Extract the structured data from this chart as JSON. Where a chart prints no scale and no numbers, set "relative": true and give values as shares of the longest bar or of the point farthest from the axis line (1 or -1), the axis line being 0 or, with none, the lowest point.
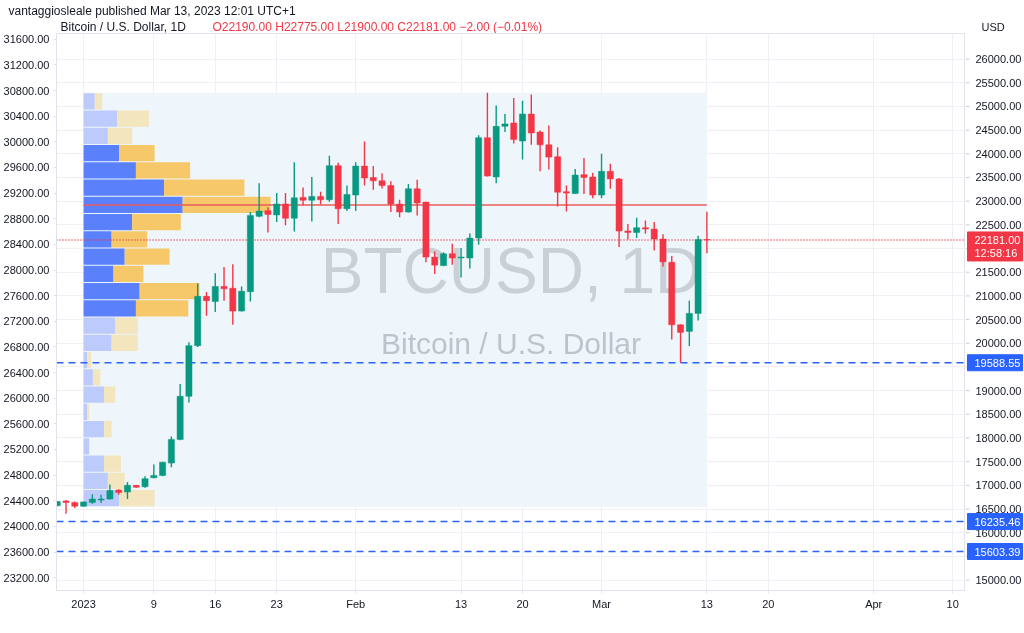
{
  "chart_data": [
    {
      "type": "candlestick",
      "title": "Bitcoin / U.S. Dollar, 1D",
      "subtitle": "O22190.00 H22775.00 L21900.00 C22181.00 −2.00 (−0.01%)",
      "ylabel": "USD",
      "annotations": [
        "vantaggiosleale published Mar 13, 2023 12:01 UTC+1",
        "BTCUSD, 1D",
        "Bitcoin / U.S. Dollar"
      ],
      "x": [
        "2022-12-29",
        "2022-12-30",
        "2022-12-31",
        "2023-01-01",
        "2023-01-02",
        "2023-01-03",
        "2023-01-04",
        "2023-01-05",
        "2023-01-06",
        "2023-01-07",
        "2023-01-08",
        "2023-01-09",
        "2023-01-10",
        "2023-01-11",
        "2023-01-12",
        "2023-01-13",
        "2023-01-14",
        "2023-01-15",
        "2023-01-16",
        "2023-01-17",
        "2023-01-18",
        "2023-01-19",
        "2023-01-20",
        "2023-01-21",
        "2023-01-22",
        "2023-01-23",
        "2023-01-24",
        "2023-01-25",
        "2023-01-26",
        "2023-01-27",
        "2023-01-28",
        "2023-01-29",
        "2023-01-30",
        "2023-01-31",
        "2023-02-01",
        "2023-02-02",
        "2023-02-03",
        "2023-02-04",
        "2023-02-05",
        "2023-02-06",
        "2023-02-07",
        "2023-02-08",
        "2023-02-09",
        "2023-02-10",
        "2023-02-11",
        "2023-02-12",
        "2023-02-13",
        "2023-02-14",
        "2023-02-15",
        "2023-02-16",
        "2023-02-17",
        "2023-02-18",
        "2023-02-19",
        "2023-02-20",
        "2023-02-21",
        "2023-02-22",
        "2023-02-23",
        "2023-02-24",
        "2023-02-25",
        "2023-02-26",
        "2023-02-27",
        "2023-02-28",
        "2023-03-01",
        "2023-03-02",
        "2023-03-03",
        "2023-03-04",
        "2023-03-05",
        "2023-03-06",
        "2023-03-07",
        "2023-03-08",
        "2023-03-09",
        "2023-03-10",
        "2023-03-11",
        "2023-03-12",
        "2023-03-13"
      ],
      "ohlc": [
        [
          16570,
          16670,
          16560,
          16660
        ],
        [
          16670,
          16690,
          16400,
          16640
        ],
        [
          16640,
          16660,
          16520,
          16560
        ],
        [
          16560,
          16660,
          16550,
          16650
        ],
        [
          16640,
          16810,
          16610,
          16710
        ],
        [
          16690,
          16800,
          16630,
          16710
        ],
        [
          16710,
          17020,
          16700,
          16890
        ],
        [
          16900,
          16920,
          16800,
          16850
        ],
        [
          16860,
          17070,
          16710,
          17000
        ],
        [
          17000,
          17010,
          16950,
          16960
        ],
        [
          16970,
          17190,
          16950,
          17140
        ],
        [
          17160,
          17440,
          17150,
          17210
        ],
        [
          17210,
          17500,
          17190,
          17490
        ],
        [
          17470,
          18030,
          17380,
          17970
        ],
        [
          17970,
          19140,
          17950,
          18880
        ],
        [
          18880,
          20020,
          18750,
          19950
        ],
        [
          19950,
          21260,
          19920,
          20990
        ],
        [
          20990,
          21080,
          20580,
          20900
        ],
        [
          20880,
          21480,
          20660,
          21200
        ],
        [
          21200,
          21610,
          20900,
          21150
        ],
        [
          21160,
          21670,
          20390,
          20680
        ],
        [
          20680,
          21200,
          20670,
          21100
        ],
        [
          21090,
          22770,
          20880,
          22700
        ],
        [
          22680,
          23380,
          22660,
          22790
        ],
        [
          22800,
          22870,
          22340,
          22720
        ],
        [
          22710,
          23170,
          22560,
          22940
        ],
        [
          22940,
          23170,
          22490,
          22640
        ],
        [
          22640,
          23820,
          22360,
          23070
        ],
        [
          23080,
          23290,
          22910,
          23020
        ],
        [
          23020,
          23510,
          22570,
          23100
        ],
        [
          23100,
          23200,
          22930,
          23030
        ],
        [
          23030,
          23960,
          22990,
          23750
        ],
        [
          23750,
          23810,
          22520,
          22840
        ],
        [
          22840,
          23330,
          22790,
          23140
        ],
        [
          23130,
          23820,
          22790,
          23740
        ],
        [
          23740,
          24260,
          23330,
          23490
        ],
        [
          23500,
          23740,
          23240,
          23430
        ],
        [
          23430,
          23590,
          23270,
          23330
        ],
        [
          23330,
          23420,
          22770,
          22940
        ],
        [
          22940,
          23030,
          22660,
          22770
        ],
        [
          22770,
          23360,
          22760,
          23260
        ],
        [
          23260,
          23450,
          22700,
          22960
        ],
        [
          22980,
          22990,
          21710,
          21820
        ],
        [
          21820,
          21940,
          21460,
          21650
        ],
        [
          21640,
          21920,
          21630,
          21890
        ],
        [
          21890,
          22100,
          21660,
          21800
        ],
        [
          21800,
          22010,
          21390,
          21820
        ],
        [
          21800,
          22320,
          21580,
          22220
        ],
        [
          22220,
          24390,
          22080,
          24340
        ],
        [
          24340,
          25290,
          23520,
          23530
        ],
        [
          23510,
          25020,
          23380,
          24580
        ],
        [
          24580,
          24840,
          24460,
          24630
        ],
        [
          24650,
          25180,
          24220,
          24300
        ],
        [
          24270,
          25120,
          23880,
          24840
        ],
        [
          24840,
          25250,
          24190,
          24440
        ],
        [
          24460,
          24490,
          23630,
          24190
        ],
        [
          24190,
          24600,
          23670,
          23930
        ],
        [
          23940,
          24140,
          22890,
          23190
        ],
        [
          23200,
          23330,
          22780,
          23170
        ],
        [
          23160,
          23680,
          23150,
          23550
        ],
        [
          23560,
          23910,
          23150,
          23500
        ],
        [
          23510,
          23600,
          23060,
          23130
        ],
        [
          23130,
          24000,
          23060,
          23630
        ],
        [
          23630,
          23790,
          23260,
          23470
        ],
        [
          23470,
          23490,
          22030,
          22370
        ],
        [
          22370,
          22520,
          22190,
          22340
        ],
        [
          22340,
          22650,
          22220,
          22440
        ],
        [
          22440,
          22590,
          22310,
          22410
        ],
        [
          22410,
          22560,
          21960,
          22200
        ],
        [
          22200,
          22300,
          21620,
          21720
        ],
        [
          21710,
          21840,
          20080,
          20390
        ],
        [
          20390,
          20400,
          19588.55,
          20230
        ],
        [
          20250,
          20900,
          19940,
          20630
        ],
        [
          20630,
          22270,
          20480,
          22190
        ],
        [
          22190,
          22775,
          21900,
          22181
        ]
      ],
      "xlim": [
        "2022-12-28T22:00",
        "2023-04-11T11:00"
      ],
      "xticks": [
        {
          "value": "2023-01-01",
          "label": "2023"
        },
        {
          "value": "2023-01-09",
          "label": "9"
        },
        {
          "value": "2023-01-16",
          "label": "16"
        },
        {
          "value": "2023-01-23",
          "label": "23"
        },
        {
          "value": "2023-02-01",
          "label": "Feb"
        },
        {
          "value": "2023-02-13",
          "label": "13"
        },
        {
          "value": "2023-02-20",
          "label": "20"
        },
        {
          "value": "2023-03-01",
          "label": "Mar"
        },
        {
          "value": "2023-03-13",
          "label": "13"
        },
        {
          "value": "2023-03-20",
          "label": "20"
        },
        {
          "value": "2023-04-01",
          "label": "Apr"
        },
        {
          "value": "2023-04-10",
          "label": "10"
        }
      ],
      "ylim": [
        14780,
        26540
      ],
      "yticks": [
        {
          "value": 15000,
          "label": "15000.00"
        },
        {
          "value": 15500,
          "label": null
        },
        {
          "value": 16000,
          "label": "16000.00"
        },
        {
          "value": 16500,
          "label": "16500.00"
        },
        {
          "value": 17000,
          "label": "17000.00"
        },
        {
          "value": 17500,
          "label": "17500.00"
        },
        {
          "value": 18000,
          "label": "18000.00"
        },
        {
          "value": 18500,
          "label": "18500.00"
        },
        {
          "value": 19000,
          "label": "19000.00"
        },
        {
          "value": 19500,
          "label": null
        },
        {
          "value": 20000,
          "label": "20000.00"
        },
        {
          "value": 20500,
          "label": "20500.00"
        },
        {
          "value": 21000,
          "label": "21000.00"
        },
        {
          "value": 21500,
          "label": "21500.00"
        },
        {
          "value": 22000,
          "label": null
        },
        {
          "value": 22500,
          "label": "22500.00"
        },
        {
          "value": 23000,
          "label": "23000.00"
        },
        {
          "value": 23500,
          "label": "23500.00"
        },
        {
          "value": 24000,
          "label": "24000.00"
        },
        {
          "value": 24500,
          "label": "24500.00"
        },
        {
          "value": 25000,
          "label": "25000.00"
        },
        {
          "value": 25500,
          "label": "25500.00"
        },
        {
          "value": 26000,
          "label": "26000.00"
        }
      ],
      "y2lim": [
        23000,
        31690
      ],
      "y2ticks": [
        {
          "value": 23200,
          "label": "23200.00"
        },
        {
          "value": 23600,
          "label": "23600.00"
        },
        {
          "value": 24000,
          "label": "24000.00"
        },
        {
          "value": 24400,
          "label": "24400.00"
        },
        {
          "value": 24800,
          "label": "24800.00"
        },
        {
          "value": 25200,
          "label": "25200.00"
        },
        {
          "value": 25600,
          "label": "25600.00"
        },
        {
          "value": 26000,
          "label": "26000.00"
        },
        {
          "value": 26400,
          "label": "26400.00"
        },
        {
          "value": 26800,
          "label": "26800.00"
        },
        {
          "value": 27200,
          "label": "27200.00"
        },
        {
          "value": 27600,
          "label": "27600.00"
        },
        {
          "value": 28000,
          "label": "28000.00"
        },
        {
          "value": 28400,
          "label": "28400.00"
        },
        {
          "value": 28800,
          "label": "28800.00"
        },
        {
          "value": 29200,
          "label": "29200.00"
        },
        {
          "value": 29600,
          "label": "29600.00"
        },
        {
          "value": 30000,
          "label": "30000.00"
        },
        {
          "value": 30400,
          "label": "30400.00"
        },
        {
          "value": 30800,
          "label": "30800.00"
        },
        {
          "value": 31200,
          "label": "31200.00"
        },
        {
          "value": 31600,
          "label": "31600.00"
        }
      ],
      "grid": true,
      "bands": [
        {
          "axis": "x",
          "from": "2023-01-01",
          "to": "2023-03-13",
          "color": "#eef6fb"
        }
      ],
      "ref_lines": [
        {
          "axis": "y",
          "value": 22920,
          "color": "#ec5b5b",
          "line_style": "solid"
        },
        {
          "axis": "y",
          "value": 22181,
          "label": "22181.00\n12:58:16",
          "color": "#f23645",
          "line_style": "dotted"
        },
        {
          "axis": "y",
          "value": 19588.55,
          "label": "19588.55",
          "color": "#2962ff",
          "line_style": "dashed"
        },
        {
          "axis": "y",
          "value": 16235.46,
          "label": "16235.46",
          "color": "#2962ff",
          "line_style": "dashed"
        },
        {
          "axis": "y",
          "value": 15603.39,
          "label": "15603.39",
          "color": "#2962ff",
          "line_style": "dashed"
        }
      ]
    },
    {
      "type": "bar",
      "orientation": "horizontal",
      "stacked": true,
      "relative": true,
      "categories": [
        null,
        null,
        null,
        null,
        null,
        null,
        null,
        null,
        null,
        null,
        null,
        null,
        null,
        null,
        null,
        null,
        null,
        null,
        null,
        null,
        null,
        null,
        null,
        null
      ],
      "series": [
        {
          "colors": [
            "#bccbfb",
            "#bccbfb",
            "#bccbfb",
            "#5b80fb",
            "#5b80fb",
            "#5b80fb",
            "#5b80fb",
            "#5b80fb",
            "#5b80fb",
            "#5b80fb",
            "#5b80fb",
            "#5b80fb",
            "#5b80fb",
            "#bccbfb",
            "#bccbfb",
            "#bccbfb",
            "#bccbfb",
            "#bccbfb",
            "#bccbfb",
            "#bccbfb",
            "#bccbfb",
            "#bccbfb",
            "#bccbfb",
            "#bccbfb"
          ],
          "values": [
            0.06,
            0.18,
            0.13,
            0.19,
            0.28,
            0.43,
            0.53,
            0.26,
            0.15,
            0.22,
            0.16,
            0.3,
            0.28,
            0.17,
            0.15,
            0.02,
            0.05,
            0.11,
            0.02,
            0.11,
            0.03,
            0.11,
            0.13,
            0.19
          ]
        },
        {
          "colors": [
            "#f3e5bd",
            "#f3e5bd",
            "#f3e5bd",
            "#f6c86a",
            "#f6c86a",
            "#f6c86a",
            "#f6c86a",
            "#f6c86a",
            "#f6c86a",
            "#f6c86a",
            "#f6c86a",
            "#f6c86a",
            "#f6c86a",
            "#f3e5bd",
            "#f3e5bd",
            "#f3e5bd",
            "#f3e5bd",
            "#f3e5bd",
            "#f3e5bd",
            "#f3e5bd",
            "#f3e5bd",
            "#f3e5bd",
            "#f3e5bd",
            "#f3e5bd"
          ],
          "values": [
            0.04,
            0.17,
            0.13,
            0.19,
            0.29,
            0.43,
            0.47,
            0.26,
            0.19,
            0.24,
            0.16,
            0.32,
            0.28,
            0.12,
            0.14,
            0.02,
            0.04,
            0.06,
            0.01,
            0.04,
            null,
            0.09,
            0.09,
            0.19
          ]
        }
      ]
    }
  ]
}
